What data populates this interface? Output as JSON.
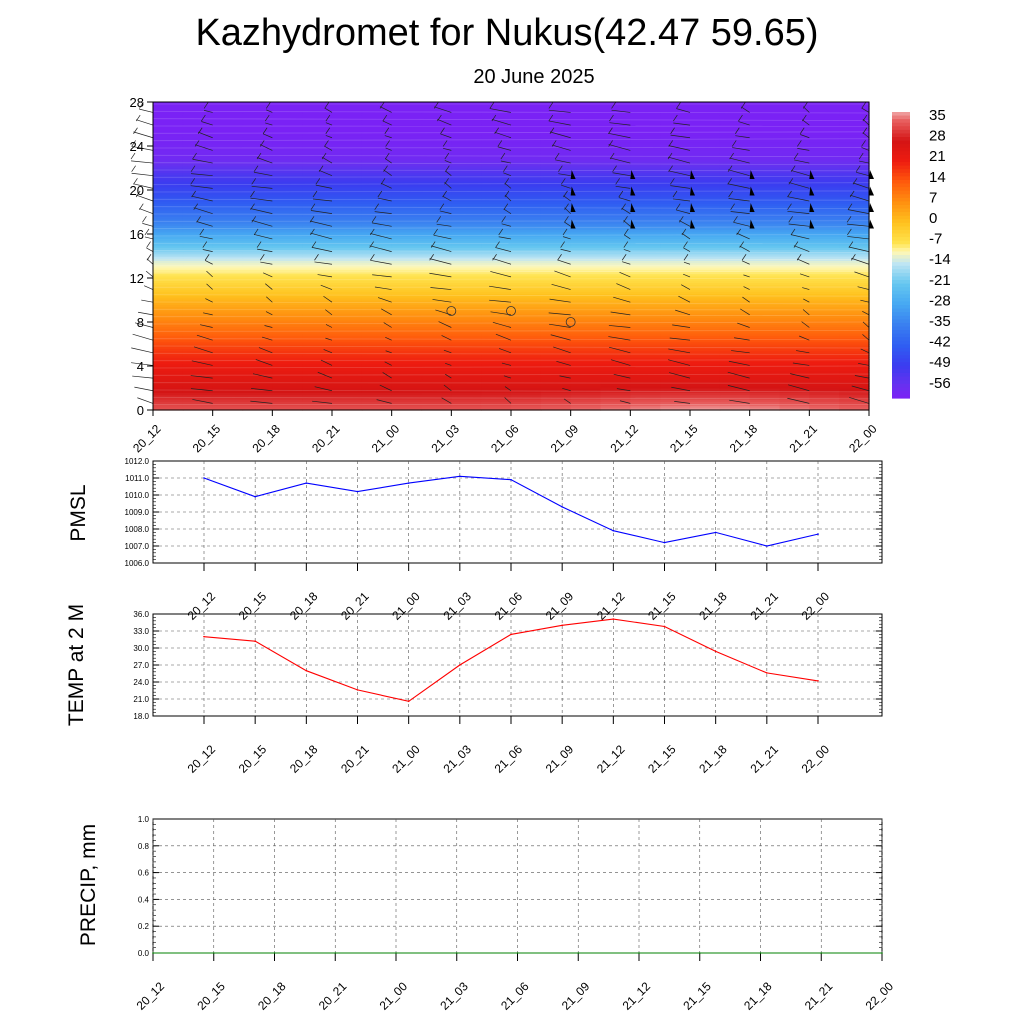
{
  "title": "Kazhydromet for Nukus(42.47 59.65)",
  "subtitle": "20 June 2025",
  "time_labels": [
    "20_12",
    "20_15",
    "20_18",
    "20_21",
    "21_00",
    "21_03",
    "21_06",
    "21_09",
    "21_12",
    "21_15",
    "21_18",
    "21_21",
    "22_00"
  ],
  "chart_data": [
    {
      "type": "heatmap",
      "name": "temperature-cross-section",
      "title": "",
      "x": [
        "20_12",
        "20_15",
        "20_18",
        "20_21",
        "21_00",
        "21_03",
        "21_06",
        "21_09",
        "21_12",
        "21_15",
        "21_18",
        "21_21",
        "22_00"
      ],
      "ylim": [
        0,
        28
      ],
      "yticks": [
        0,
        4,
        8,
        12,
        16,
        20,
        24,
        28
      ],
      "colorbar": {
        "labels": [
          "35",
          "28",
          "21",
          "14",
          "7",
          "0",
          "-7",
          "-14",
          "-21",
          "-28",
          "-35",
          "-42",
          "-49",
          "-56"
        ],
        "range": [
          -60,
          38
        ],
        "stops": [
          {
            "v": -60,
            "c": "#7a22f5"
          },
          {
            "v": -56,
            "c": "#6a30f0"
          },
          {
            "v": -49,
            "c": "#3b3cf0"
          },
          {
            "v": -42,
            "c": "#2f5ef2"
          },
          {
            "v": -35,
            "c": "#3a7ff0"
          },
          {
            "v": -28,
            "c": "#46a8f2"
          },
          {
            "v": -21,
            "c": "#64c6f0"
          },
          {
            "v": -14,
            "c": "#bfe5f3"
          },
          {
            "v": -10,
            "c": "#fff8b5"
          },
          {
            "v": -7,
            "c": "#ffe34f"
          },
          {
            "v": 0,
            "c": "#ffc21e"
          },
          {
            "v": 7,
            "c": "#ff9010"
          },
          {
            "v": 14,
            "c": "#ff5a0c"
          },
          {
            "v": 21,
            "c": "#ee1c10"
          },
          {
            "v": 28,
            "c": "#d41414"
          },
          {
            "v": 35,
            "c": "#e86060"
          },
          {
            "v": 38,
            "c": "#f0a8a8"
          }
        ]
      },
      "profile": [
        {
          "h": 0,
          "t": 34
        },
        {
          "h": 2,
          "t": 27
        },
        {
          "h": 4,
          "t": 22
        },
        {
          "h": 6,
          "t": 16
        },
        {
          "h": 8,
          "t": 9
        },
        {
          "h": 10,
          "t": 2
        },
        {
          "h": 12,
          "t": -6
        },
        {
          "h": 13.5,
          "t": -12
        },
        {
          "h": 15,
          "t": -22
        },
        {
          "h": 17,
          "t": -34
        },
        {
          "h": 19.5,
          "t": -45
        },
        {
          "h": 21.5,
          "t": -52
        },
        {
          "h": 23,
          "t": -58
        },
        {
          "h": 28,
          "t": -62
        }
      ],
      "calm_markers": [
        {
          "x": "21_03",
          "y": 9
        },
        {
          "x": "21_06",
          "y": 9
        },
        {
          "x": "21_09",
          "y": 8
        }
      ]
    },
    {
      "type": "line",
      "name": "PMSL",
      "ylabel": "PMSL",
      "x": [
        "20_12",
        "20_15",
        "20_18",
        "20_21",
        "21_00",
        "21_03",
        "21_06",
        "21_09",
        "21_12",
        "21_15",
        "21_18",
        "21_21",
        "22_00"
      ],
      "values": [
        1011.0,
        1009.9,
        1010.7,
        1010.2,
        1010.7,
        1011.1,
        1010.9,
        1009.3,
        1007.9,
        1007.2,
        1007.8,
        1007.0,
        1007.7
      ],
      "ylim": [
        1006.0,
        1012.0
      ],
      "yticks": [
        "1006.0",
        "1007.0",
        "1008.0",
        "1009.0",
        "1010.0",
        "1011.0",
        "1012.0"
      ],
      "color": "#0000ff"
    },
    {
      "type": "line",
      "name": "TEMP at 2 M",
      "ylabel": "TEMP at 2 M",
      "x": [
        "20_12",
        "20_15",
        "20_18",
        "20_21",
        "21_00",
        "21_03",
        "21_06",
        "21_09",
        "21_12",
        "21_15",
        "21_18",
        "21_21",
        "22_00"
      ],
      "values": [
        32.0,
        31.2,
        26.0,
        22.6,
        20.6,
        27.0,
        32.4,
        34.0,
        35.1,
        33.8,
        29.4,
        25.6,
        24.2
      ],
      "ylim": [
        18.0,
        36.0
      ],
      "yticks": [
        "18.0",
        "21.0",
        "24.0",
        "27.0",
        "30.0",
        "33.0",
        "36.0"
      ],
      "color": "#ff0000"
    },
    {
      "type": "line",
      "name": "PRECIP, mm",
      "ylabel": "PRECIP, mm",
      "x": [
        "20_12",
        "20_15",
        "20_18",
        "20_21",
        "21_00",
        "21_03",
        "21_06",
        "21_09",
        "21_12",
        "21_15",
        "21_18",
        "21_21",
        "22_00"
      ],
      "values": [
        0,
        0,
        0,
        0,
        0,
        0,
        0,
        0,
        0,
        0,
        0,
        0,
        0
      ],
      "ylim": [
        0.0,
        1.0
      ],
      "yticks": [
        "0.0",
        "0.2",
        "0.4",
        "0.6",
        "0.8",
        "1.0"
      ],
      "color": "#008000"
    }
  ]
}
